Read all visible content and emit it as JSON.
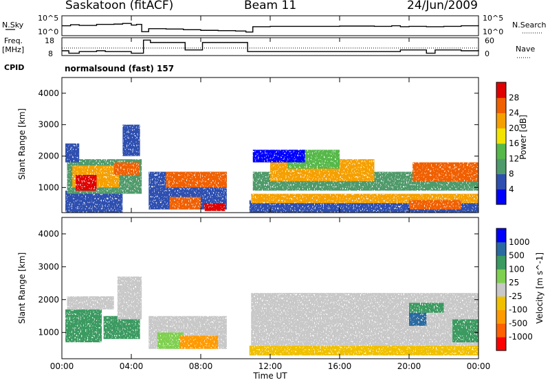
{
  "header": {
    "station": "Saskatoon (fitACF)",
    "beam": "Beam 11",
    "date": "24/Jun/2009"
  },
  "noise_panel": {
    "left_label": "N.Sky",
    "right_label": "N.Search",
    "left_ticks": [
      "10^5",
      "10^0"
    ],
    "right_ticks": [
      "10^5",
      "10^0"
    ]
  },
  "freq_panel": {
    "left_label_1": "Freq.",
    "left_label_2": "[MHz]",
    "right_label": "Nave",
    "left_ticks": [
      "18",
      "8"
    ],
    "right_ticks": [
      "60",
      "0"
    ]
  },
  "cpid": {
    "label": "CPID",
    "value": "normalsound (fast) 157"
  },
  "time_axis": {
    "title": "Time UT",
    "ticks": [
      "00:00",
      "04:00",
      "08:00",
      "12:00",
      "16:00",
      "20:00",
      "00:00"
    ]
  },
  "colors": {
    "power_scale": [
      "#0000ff",
      "#2f4fb0",
      "#4f9a6a",
      "#56b84a",
      "#f2e400",
      "#f5a000",
      "#f06000",
      "#e00000"
    ],
    "velocity_scale": [
      "#ff0000",
      "#ff6000",
      "#ff9a00",
      "#f0c000",
      "#c8c8c8",
      "#7fd050",
      "#3a9a60",
      "#2a6aa0",
      "#0000ff"
    ]
  },
  "chart_data": [
    {
      "type": "line",
      "title": "",
      "xlabel": "",
      "ylabel": "N.Sky",
      "x_hours": [
        0,
        0.5,
        1,
        2,
        3,
        3.5,
        4,
        4.3,
        4.6,
        5,
        6,
        7,
        8,
        9,
        10,
        10.6,
        11,
        12,
        14,
        16,
        18,
        19,
        19.5,
        20,
        21,
        22,
        23,
        24
      ],
      "series": [
        {
          "name": "N.Sky",
          "values_log10": [
            2.6,
            2.9,
            2.7,
            3.0,
            3.1,
            3.3,
            2.8,
            3.0,
            0.8,
            1.7,
            1.6,
            1.4,
            1.2,
            1.1,
            1.0,
            0.7,
            2.3,
            2.4,
            2.4,
            2.5,
            2.4,
            2.6,
            2.3,
            2.4,
            2.3,
            2.4,
            2.6,
            2.5
          ]
        }
      ],
      "ylim": [
        0,
        5
      ]
    },
    {
      "type": "line",
      "title": "",
      "xlabel": "",
      "ylabel": "Freq. [MHz]",
      "x_hours": [
        0,
        0.3,
        0.4,
        0.8,
        1,
        1.5,
        2,
        2.5,
        3,
        3.5,
        4,
        4.6,
        4.7,
        5,
        5.1,
        6,
        7,
        7.1,
        8,
        8.1,
        9,
        10,
        10.7,
        11,
        12,
        16,
        18,
        19,
        19.5,
        20,
        21,
        21.5,
        22,
        23,
        24
      ],
      "series": [
        {
          "name": "Freq.",
          "values": [
            10.5,
            10.5,
            9,
            9,
            10,
            10,
            10.5,
            10,
            10,
            10,
            9,
            9,
            17,
            17,
            15.5,
            15.5,
            15.5,
            11,
            11,
            15.5,
            15.5,
            15.5,
            10,
            10,
            10,
            10,
            10,
            10,
            11,
            11,
            9,
            11,
            11,
            10.5,
            11
          ]
        }
      ],
      "ylim": [
        8,
        18
      ],
      "reference_line": "dotted"
    },
    {
      "type": "heatmap",
      "title": "",
      "xlabel": "Time UT",
      "ylabel": "Slant Range [km]",
      "quantity": "Power [dB]",
      "colorbar_ticks": [
        4,
        8,
        12,
        16,
        20,
        24,
        28
      ],
      "xlim_hours": [
        0,
        24
      ],
      "ylim_km": [
        200,
        4500
      ],
      "y_ticks": [
        1000,
        2000,
        3000,
        4000
      ]
    },
    {
      "type": "heatmap",
      "title": "",
      "xlabel": "Time UT",
      "ylabel": "Slant Range [km]",
      "quantity": "Velocity [m s^-1]",
      "colorbar_ticks": [
        1000,
        500,
        100,
        25,
        -25,
        -100,
        -500,
        -1000
      ],
      "xlim_hours": [
        0,
        24
      ],
      "ylim_km": [
        200,
        4500
      ],
      "y_ticks": [
        1000,
        2000,
        3000,
        4000
      ]
    }
  ]
}
